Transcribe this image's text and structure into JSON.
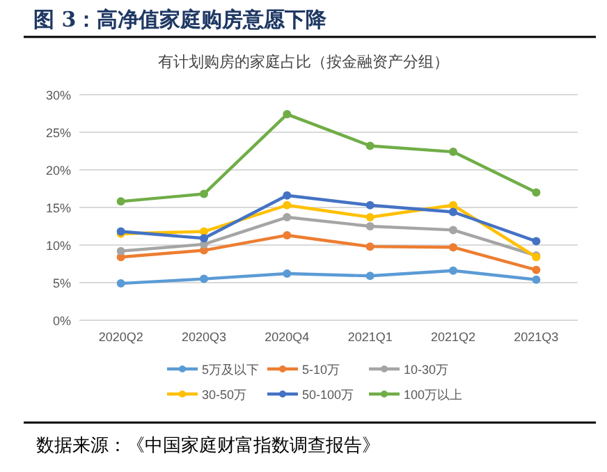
{
  "chart_data": {
    "type": "line",
    "title": "图 3：高净值家庭购房意愿下降",
    "subtitle": "有计划购房的家庭占比（按金融资产分组）",
    "categories": [
      "2020Q2",
      "2020Q3",
      "2020Q4",
      "2021Q1",
      "2021Q2",
      "2021Q3"
    ],
    "series": [
      {
        "name": "5万及以下",
        "color": "#5b9bd5",
        "values": [
          4.9,
          5.5,
          6.2,
          5.9,
          6.6,
          5.4
        ]
      },
      {
        "name": "5-10万",
        "color": "#ed7d31",
        "values": [
          8.4,
          9.3,
          11.3,
          9.8,
          9.7,
          6.7
        ]
      },
      {
        "name": "10-30万",
        "color": "#a5a5a5",
        "values": [
          9.2,
          10.1,
          13.7,
          12.5,
          12.0,
          8.6
        ]
      },
      {
        "name": "30-50万",
        "color": "#ffc000",
        "values": [
          11.5,
          11.8,
          15.3,
          13.7,
          15.3,
          8.4
        ]
      },
      {
        "name": "50-100万",
        "color": "#4472c4",
        "values": [
          11.8,
          10.9,
          16.6,
          15.3,
          14.4,
          10.5
        ]
      },
      {
        "name": "100万以上",
        "color": "#70ad47",
        "values": [
          15.8,
          16.8,
          27.4,
          23.2,
          22.4,
          17.0
        ]
      }
    ],
    "ylim": [
      0,
      30
    ],
    "yticks": [
      {
        "value": 0,
        "label": "0%"
      },
      {
        "value": 5,
        "label": "5%"
      },
      {
        "value": 10,
        "label": "10%"
      },
      {
        "value": 15,
        "label": "15%"
      },
      {
        "value": 20,
        "label": "20%"
      },
      {
        "value": 25,
        "label": "25%"
      },
      {
        "value": 30,
        "label": "30%"
      }
    ],
    "grid": "y",
    "legend": "bottom",
    "marker": "circle",
    "line_style": "solid",
    "annotations": [
      "数据来源：《中国家庭财富指数调查报告》"
    ]
  }
}
